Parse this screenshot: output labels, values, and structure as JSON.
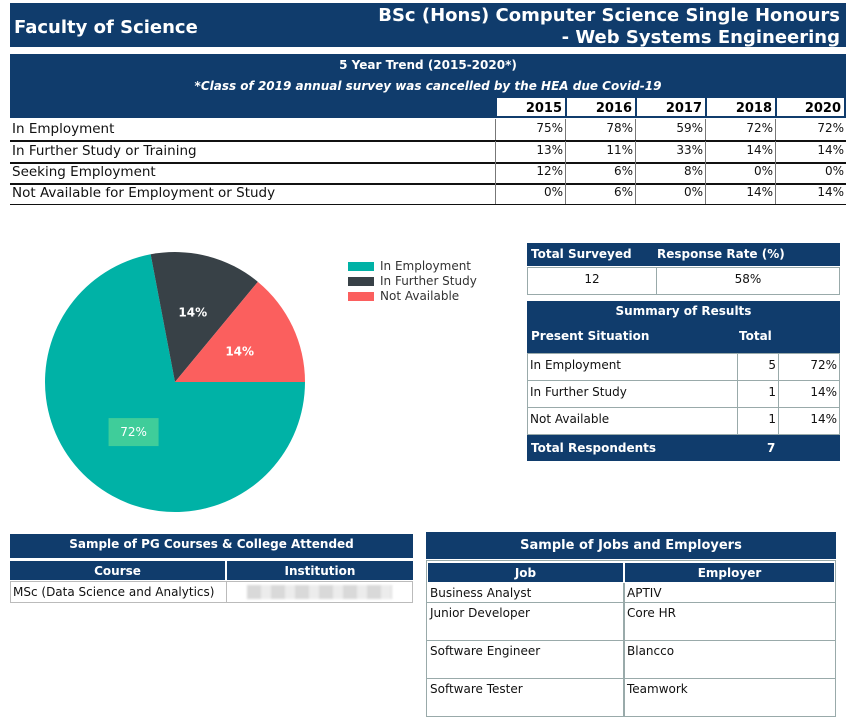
{
  "header": {
    "faculty": "Faculty of Science",
    "programme_line1": "BSc (Hons) Computer Science Single Honours",
    "programme_line2": "- Web Systems Engineering"
  },
  "trend": {
    "title": "5 Year Trend (2015-2020*)",
    "note": "*Class of 2019 annual survey was cancelled by the HEA due Covid-19",
    "years": [
      "2015",
      "2016",
      "2017",
      "2018",
      "2020"
    ],
    "rows": [
      {
        "label": "In Employment",
        "values": [
          "75%",
          "78%",
          "59%",
          "72%",
          "72%"
        ]
      },
      {
        "label": "In Further Study or Training",
        "values": [
          "13%",
          "11%",
          "33%",
          "14%",
          "14%"
        ]
      },
      {
        "label": "Seeking Employment",
        "values": [
          "12%",
          "6%",
          "8%",
          "0%",
          "0%"
        ]
      },
      {
        "label": "Not Available for Employment or Study",
        "values": [
          "0%",
          "6%",
          "0%",
          "14%",
          "14%"
        ]
      }
    ]
  },
  "pie": {
    "slices": [
      {
        "label": "In Employment",
        "value": 72,
        "display": "72%",
        "color": "#00b2a6"
      },
      {
        "label": "In Further Study",
        "value": 14,
        "display": "14%",
        "color": "#384147"
      },
      {
        "label": "Not Available",
        "value": 14,
        "display": "14%",
        "color": "#fb5f5e"
      }
    ]
  },
  "survey": {
    "total_surveyed_label": "Total Surveyed",
    "response_rate_label": "Response Rate (%)",
    "total_surveyed": "12",
    "response_rate": "58%"
  },
  "summary": {
    "title": "Summary of Results",
    "col_situation": "Present Situation",
    "col_total": "Total",
    "rows": [
      {
        "label": "In Employment",
        "count": "5",
        "pct": "72%"
      },
      {
        "label": "In Further Study",
        "count": "1",
        "pct": "14%"
      },
      {
        "label": "Not Available",
        "count": "1",
        "pct": "14%"
      }
    ],
    "total_label": "Total Respondents",
    "total_value": "7"
  },
  "pg_courses": {
    "title": "Sample of PG Courses & College Attended",
    "col_course": "Course",
    "col_institution": "Institution",
    "rows": [
      {
        "course": "MSc (Data Science and Analytics)"
      }
    ]
  },
  "jobs": {
    "title": "Sample of Jobs and Employers",
    "col_job": "Job",
    "col_employer": "Employer",
    "rows": [
      {
        "job": "Business Analyst",
        "employer": "APTIV"
      },
      {
        "job": "Junior Developer",
        "employer": "Core HR"
      },
      {
        "job": "Software Engineer",
        "employer": "Blancco"
      },
      {
        "job": "Software Tester",
        "employer": "Teamwork"
      }
    ]
  }
}
